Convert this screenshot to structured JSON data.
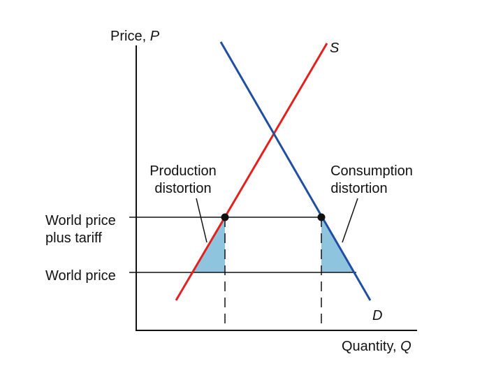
{
  "axes": {
    "y_label": {
      "text": "Price,",
      "symbol": "P"
    },
    "x_label": {
      "text": "Quantity,",
      "symbol": "Q"
    }
  },
  "curves": {
    "supply": "S",
    "demand": "D"
  },
  "price_lines": [
    {
      "lines": [
        "World price",
        "plus tariff"
      ]
    },
    {
      "lines": [
        "World price"
      ]
    }
  ],
  "annotations": [
    {
      "lines": [
        "Production",
        "distortion"
      ]
    },
    {
      "lines": [
        "Consumption",
        "distortion"
      ]
    }
  ]
}
